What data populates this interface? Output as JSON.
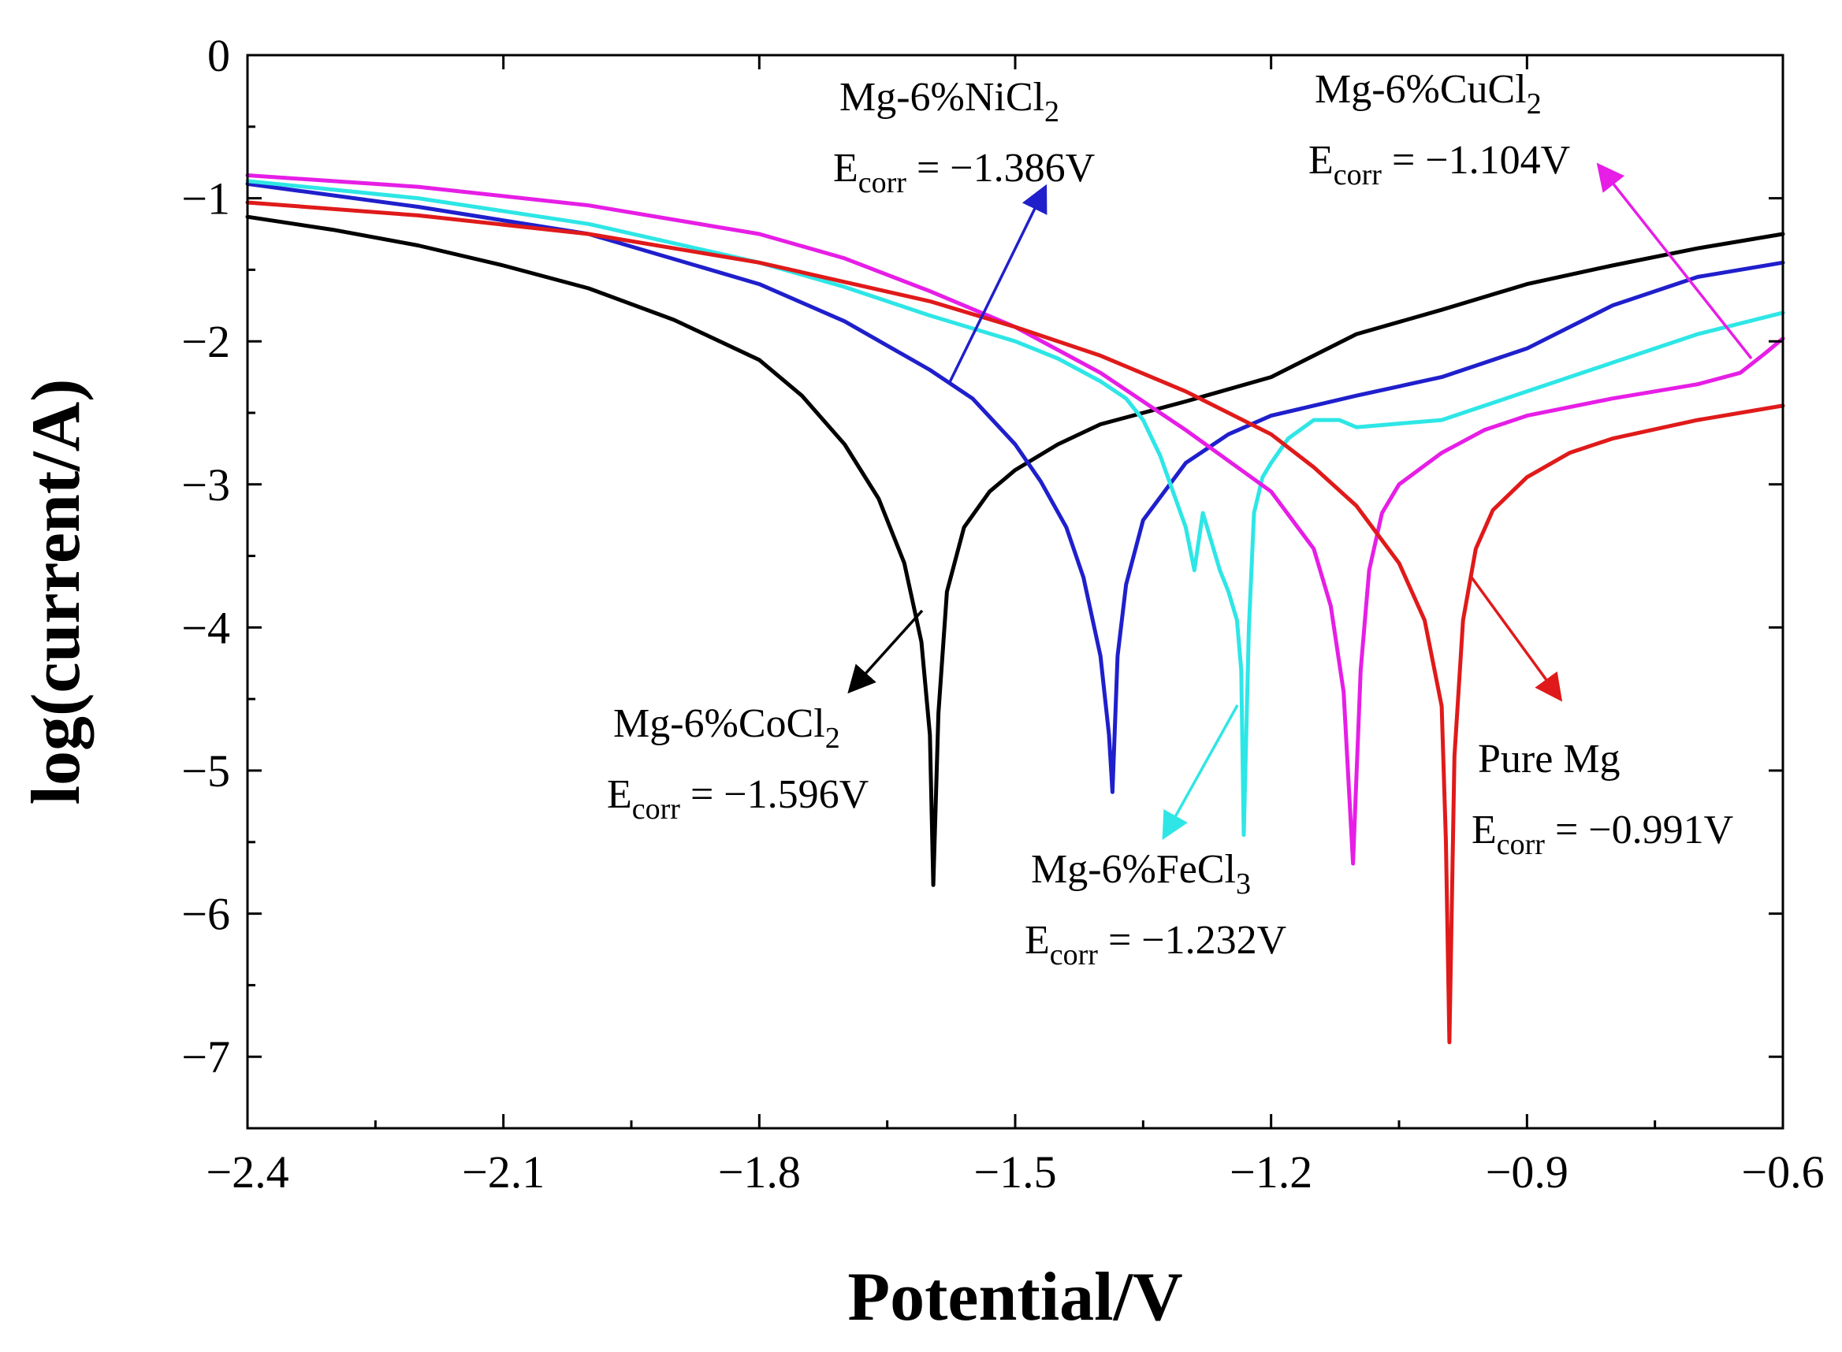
{
  "chart_data": {
    "type": "line",
    "title": "",
    "xlabel": "Potential/V",
    "ylabel": "log(current/A)",
    "xlim": [
      -2.4,
      -0.6
    ],
    "ylim": [
      -7.5,
      0
    ],
    "xticks": [
      -2.4,
      -2.1,
      -1.8,
      -1.5,
      -1.2,
      -0.9,
      -0.6
    ],
    "xtick_labels": [
      "−2.4",
      "−2.1",
      "−1.8",
      "−1.5",
      "−1.2",
      "−0.9",
      "−0.6"
    ],
    "yticks": [
      0,
      -1,
      -2,
      -3,
      -4,
      -5,
      -6,
      -7
    ],
    "ytick_labels": [
      "0",
      "−1",
      "−2",
      "−3",
      "−4",
      "−5",
      "−6",
      "−7"
    ],
    "grid": false,
    "series": [
      {
        "name": "Mg-6%CoCl2",
        "color": "#000000",
        "x": [
          -2.4,
          -2.3,
          -2.2,
          -2.1,
          -2.0,
          -1.9,
          -1.8,
          -1.75,
          -1.7,
          -1.66,
          -1.63,
          -1.61,
          -1.6,
          -1.596,
          -1.59,
          -1.58,
          -1.56,
          -1.53,
          -1.5,
          -1.45,
          -1.4,
          -1.3,
          -1.2,
          -1.1,
          -1.0,
          -0.9,
          -0.8,
          -0.7,
          -0.6
        ],
        "y": [
          -1.13,
          -1.22,
          -1.33,
          -1.47,
          -1.63,
          -1.85,
          -2.13,
          -2.38,
          -2.72,
          -3.1,
          -3.55,
          -4.1,
          -4.75,
          -5.8,
          -4.6,
          -3.75,
          -3.3,
          -3.05,
          -2.9,
          -2.72,
          -2.58,
          -2.42,
          -2.25,
          -1.95,
          -1.78,
          -1.6,
          -1.47,
          -1.35,
          -1.25
        ]
      },
      {
        "name": "Mg-6%NiCl2",
        "color": "#1f1fcc",
        "x": [
          -2.4,
          -2.2,
          -2.0,
          -1.8,
          -1.7,
          -1.6,
          -1.55,
          -1.5,
          -1.47,
          -1.44,
          -1.42,
          -1.4,
          -1.39,
          -1.386,
          -1.38,
          -1.37,
          -1.35,
          -1.3,
          -1.25,
          -1.2,
          -1.1,
          -1.0,
          -0.9,
          -0.8,
          -0.7,
          -0.6
        ],
        "y": [
          -0.9,
          -1.06,
          -1.25,
          -1.6,
          -1.86,
          -2.2,
          -2.4,
          -2.72,
          -2.98,
          -3.3,
          -3.65,
          -4.2,
          -4.75,
          -5.15,
          -4.2,
          -3.7,
          -3.25,
          -2.85,
          -2.65,
          -2.52,
          -2.38,
          -2.25,
          -2.05,
          -1.75,
          -1.55,
          -1.45
        ]
      },
      {
        "name": "Mg-6%FeCl3",
        "color": "#2ee6e6",
        "x": [
          -2.4,
          -2.2,
          -2.0,
          -1.8,
          -1.7,
          -1.6,
          -1.5,
          -1.45,
          -1.4,
          -1.37,
          -1.35,
          -1.33,
          -1.3,
          -1.29,
          -1.28,
          -1.27,
          -1.26,
          -1.25,
          -1.24,
          -1.235,
          -1.232,
          -1.226,
          -1.22,
          -1.21,
          -1.2,
          -1.18,
          -1.15,
          -1.12,
          -1.1,
          -1.0,
          -0.9,
          -0.8,
          -0.7,
          -0.6
        ],
        "y": [
          -0.88,
          -1.0,
          -1.18,
          -1.45,
          -1.62,
          -1.82,
          -2.0,
          -2.12,
          -2.28,
          -2.4,
          -2.55,
          -2.8,
          -3.3,
          -3.6,
          -3.2,
          -3.4,
          -3.6,
          -3.75,
          -3.95,
          -4.3,
          -5.45,
          -4.0,
          -3.2,
          -2.95,
          -2.85,
          -2.68,
          -2.55,
          -2.55,
          -2.6,
          -2.55,
          -2.35,
          -2.15,
          -1.95,
          -1.8
        ]
      },
      {
        "name": "Mg-6%CuCl2",
        "color": "#e61ee6",
        "x": [
          -2.4,
          -2.2,
          -2.0,
          -1.8,
          -1.7,
          -1.6,
          -1.5,
          -1.4,
          -1.3,
          -1.2,
          -1.15,
          -1.13,
          -1.115,
          -1.104,
          -1.095,
          -1.085,
          -1.07,
          -1.05,
          -1.0,
          -0.95,
          -0.9,
          -0.8,
          -0.7,
          -0.65,
          -0.62,
          -0.6
        ],
        "y": [
          -0.84,
          -0.92,
          -1.05,
          -1.25,
          -1.42,
          -1.65,
          -1.9,
          -2.22,
          -2.62,
          -3.05,
          -3.45,
          -3.85,
          -4.45,
          -5.65,
          -4.3,
          -3.6,
          -3.2,
          -3.0,
          -2.78,
          -2.62,
          -2.52,
          -2.4,
          -2.3,
          -2.22,
          -2.08,
          -1.98
        ]
      },
      {
        "name": "Pure Mg",
        "color": "#e01a1a",
        "x": [
          -2.4,
          -2.2,
          -2.0,
          -1.8,
          -1.6,
          -1.5,
          -1.4,
          -1.3,
          -1.2,
          -1.15,
          -1.1,
          -1.05,
          -1.02,
          -1.0,
          -0.995,
          -0.991,
          -0.985,
          -0.975,
          -0.96,
          -0.94,
          -0.9,
          -0.85,
          -0.8,
          -0.7,
          -0.6
        ],
        "y": [
          -1.03,
          -1.12,
          -1.25,
          -1.45,
          -1.72,
          -1.9,
          -2.1,
          -2.35,
          -2.65,
          -2.88,
          -3.15,
          -3.55,
          -3.95,
          -4.55,
          -5.5,
          -6.9,
          -4.9,
          -3.95,
          -3.45,
          -3.18,
          -2.95,
          -2.78,
          -2.68,
          -2.55,
          -2.45
        ]
      }
    ],
    "annotations": [
      {
        "series": "Mg-6%NiCl2",
        "main": "Mg-6%NiCl",
        "sub": "2",
        "e_main": "E",
        "e_sub": "corr",
        "e_value": " = −1.386V",
        "color": "#1f1fcc"
      },
      {
        "series": "Mg-6%CuCl2",
        "main": "Mg-6%CuCl",
        "sub": "2",
        "e_main": "E",
        "e_sub": "corr",
        "e_value": " = −1.104V",
        "color": "#e61ee6"
      },
      {
        "series": "Mg-6%CoCl2",
        "main": "Mg-6%CoCl",
        "sub": "2",
        "e_main": "E",
        "e_sub": "corr",
        "e_value": " = −1.596V",
        "color": "#000000"
      },
      {
        "series": "Mg-6%FeCl3",
        "main": "Mg-6%FeCl",
        "sub": "3",
        "e_main": "E",
        "e_sub": "corr",
        "e_value": " = −1.232V",
        "color": "#2ee6e6"
      },
      {
        "series": "Pure Mg",
        "main": "Pure Mg",
        "sub": "",
        "e_main": "E",
        "e_sub": "corr",
        "e_value": " = −0.991V",
        "color": "#e01a1a"
      }
    ]
  }
}
